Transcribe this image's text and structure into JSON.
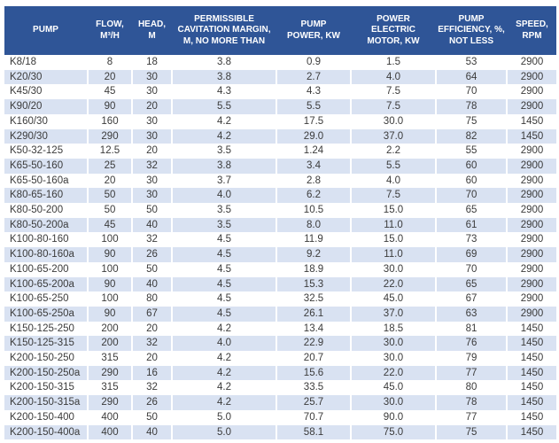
{
  "colors": {
    "header_bg": "#2F5597",
    "header_text": "#FFFFFF",
    "row_bg": "#FFFFFF",
    "row_alt_bg": "#D9E2F2",
    "cell_text": "#3B3B3B"
  },
  "chart_data": {
    "type": "table",
    "title": "",
    "layout": {
      "header_style": "solid-dark-blue-band",
      "banding": "alternate rows white / light blue, white vertical cell separators",
      "grid": "no outer border"
    },
    "columns": [
      {
        "id": "pump",
        "label": "PUMP"
      },
      {
        "id": "flow",
        "label": "FLOW,\nM³/H"
      },
      {
        "id": "head",
        "label": "HEAD,\nM"
      },
      {
        "id": "cavitation",
        "label": "PERMISSIBLE\nCAVITATION MARGIN,\nM, NO MORE THAN"
      },
      {
        "id": "pump-power",
        "label": "PUMP\nPOWER, KW"
      },
      {
        "id": "motor-power",
        "label": "POWER\nELECTRIC\nMOTOR, KW"
      },
      {
        "id": "efficiency",
        "label": "PUMP\nEFFICIENCY, %,\nNOT LESS"
      },
      {
        "id": "speed",
        "label": "SPEED,\nRPM"
      }
    ],
    "rows": [
      [
        "K8/18",
        "8",
        "18",
        "3.8",
        "0.9",
        "1.5",
        "53",
        "2900"
      ],
      [
        "K20/30",
        "20",
        "30",
        "3.8",
        "2.7",
        "4.0",
        "64",
        "2900"
      ],
      [
        "K45/30",
        "45",
        "30",
        "4.3",
        "4.3",
        "7.5",
        "70",
        "2900"
      ],
      [
        "K90/20",
        "90",
        "20",
        "5.5",
        "5.5",
        "7.5",
        "78",
        "2900"
      ],
      [
        "K160/30",
        "160",
        "30",
        "4.2",
        "17.5",
        "30.0",
        "75",
        "1450"
      ],
      [
        "K290/30",
        "290",
        "30",
        "4.2",
        "29.0",
        "37.0",
        "82",
        "1450"
      ],
      [
        "K50-32-125",
        "12.5",
        "20",
        "3.5",
        "1.24",
        "2.2",
        "55",
        "2900"
      ],
      [
        "K65-50-160",
        "25",
        "32",
        "3.8",
        "3.4",
        "5.5",
        "60",
        "2900"
      ],
      [
        "K65-50-160a",
        "20",
        "30",
        "3.7",
        "2.8",
        "4.0",
        "60",
        "2900"
      ],
      [
        "K80-65-160",
        "50",
        "30",
        "4.0",
        "6.2",
        "7.5",
        "70",
        "2900"
      ],
      [
        "K80-50-200",
        "50",
        "50",
        "3.5",
        "10.5",
        "15.0",
        "65",
        "2900"
      ],
      [
        "K80-50-200a",
        "45",
        "40",
        "3.5",
        "8.0",
        "11.0",
        "61",
        "2900"
      ],
      [
        "K100-80-160",
        "100",
        "32",
        "4.5",
        "11.9",
        "15.0",
        "73",
        "2900"
      ],
      [
        "K100-80-160a",
        "90",
        "26",
        "4.5",
        "9.2",
        "11.0",
        "69",
        "2900"
      ],
      [
        "K100-65-200",
        "100",
        "50",
        "4.5",
        "18.9",
        "30.0",
        "70",
        "2900"
      ],
      [
        "K100-65-200a",
        "90",
        "40",
        "4.5",
        "15.3",
        "22.0",
        "65",
        "2900"
      ],
      [
        "K100-65-250",
        "100",
        "80",
        "4.5",
        "32.5",
        "45.0",
        "67",
        "2900"
      ],
      [
        "K100-65-250a",
        "90",
        "67",
        "4.5",
        "26.1",
        "37.0",
        "63",
        "2900"
      ],
      [
        "K150-125-250",
        "200",
        "20",
        "4.2",
        "13.4",
        "18.5",
        "81",
        "1450"
      ],
      [
        "K150-125-315",
        "200",
        "32",
        "4.0",
        "22.9",
        "30.0",
        "76",
        "1450"
      ],
      [
        "K200-150-250",
        "315",
        "20",
        "4.2",
        "20.7",
        "30.0",
        "79",
        "1450"
      ],
      [
        "K200-150-250a",
        "290",
        "16",
        "4.2",
        "15.6",
        "22.0",
        "77",
        "1450"
      ],
      [
        "K200-150-315",
        "315",
        "32",
        "4.2",
        "33.5",
        "45.0",
        "80",
        "1450"
      ],
      [
        "K200-150-315a",
        "290",
        "26",
        "4.2",
        "25.7",
        "30.0",
        "78",
        "1450"
      ],
      [
        "K200-150-400",
        "400",
        "50",
        "5.0",
        "70.7",
        "90.0",
        "77",
        "1450"
      ],
      [
        "K200-150-400a",
        "400",
        "40",
        "5.0",
        "58.1",
        "75.0",
        "75",
        "1450"
      ]
    ]
  }
}
